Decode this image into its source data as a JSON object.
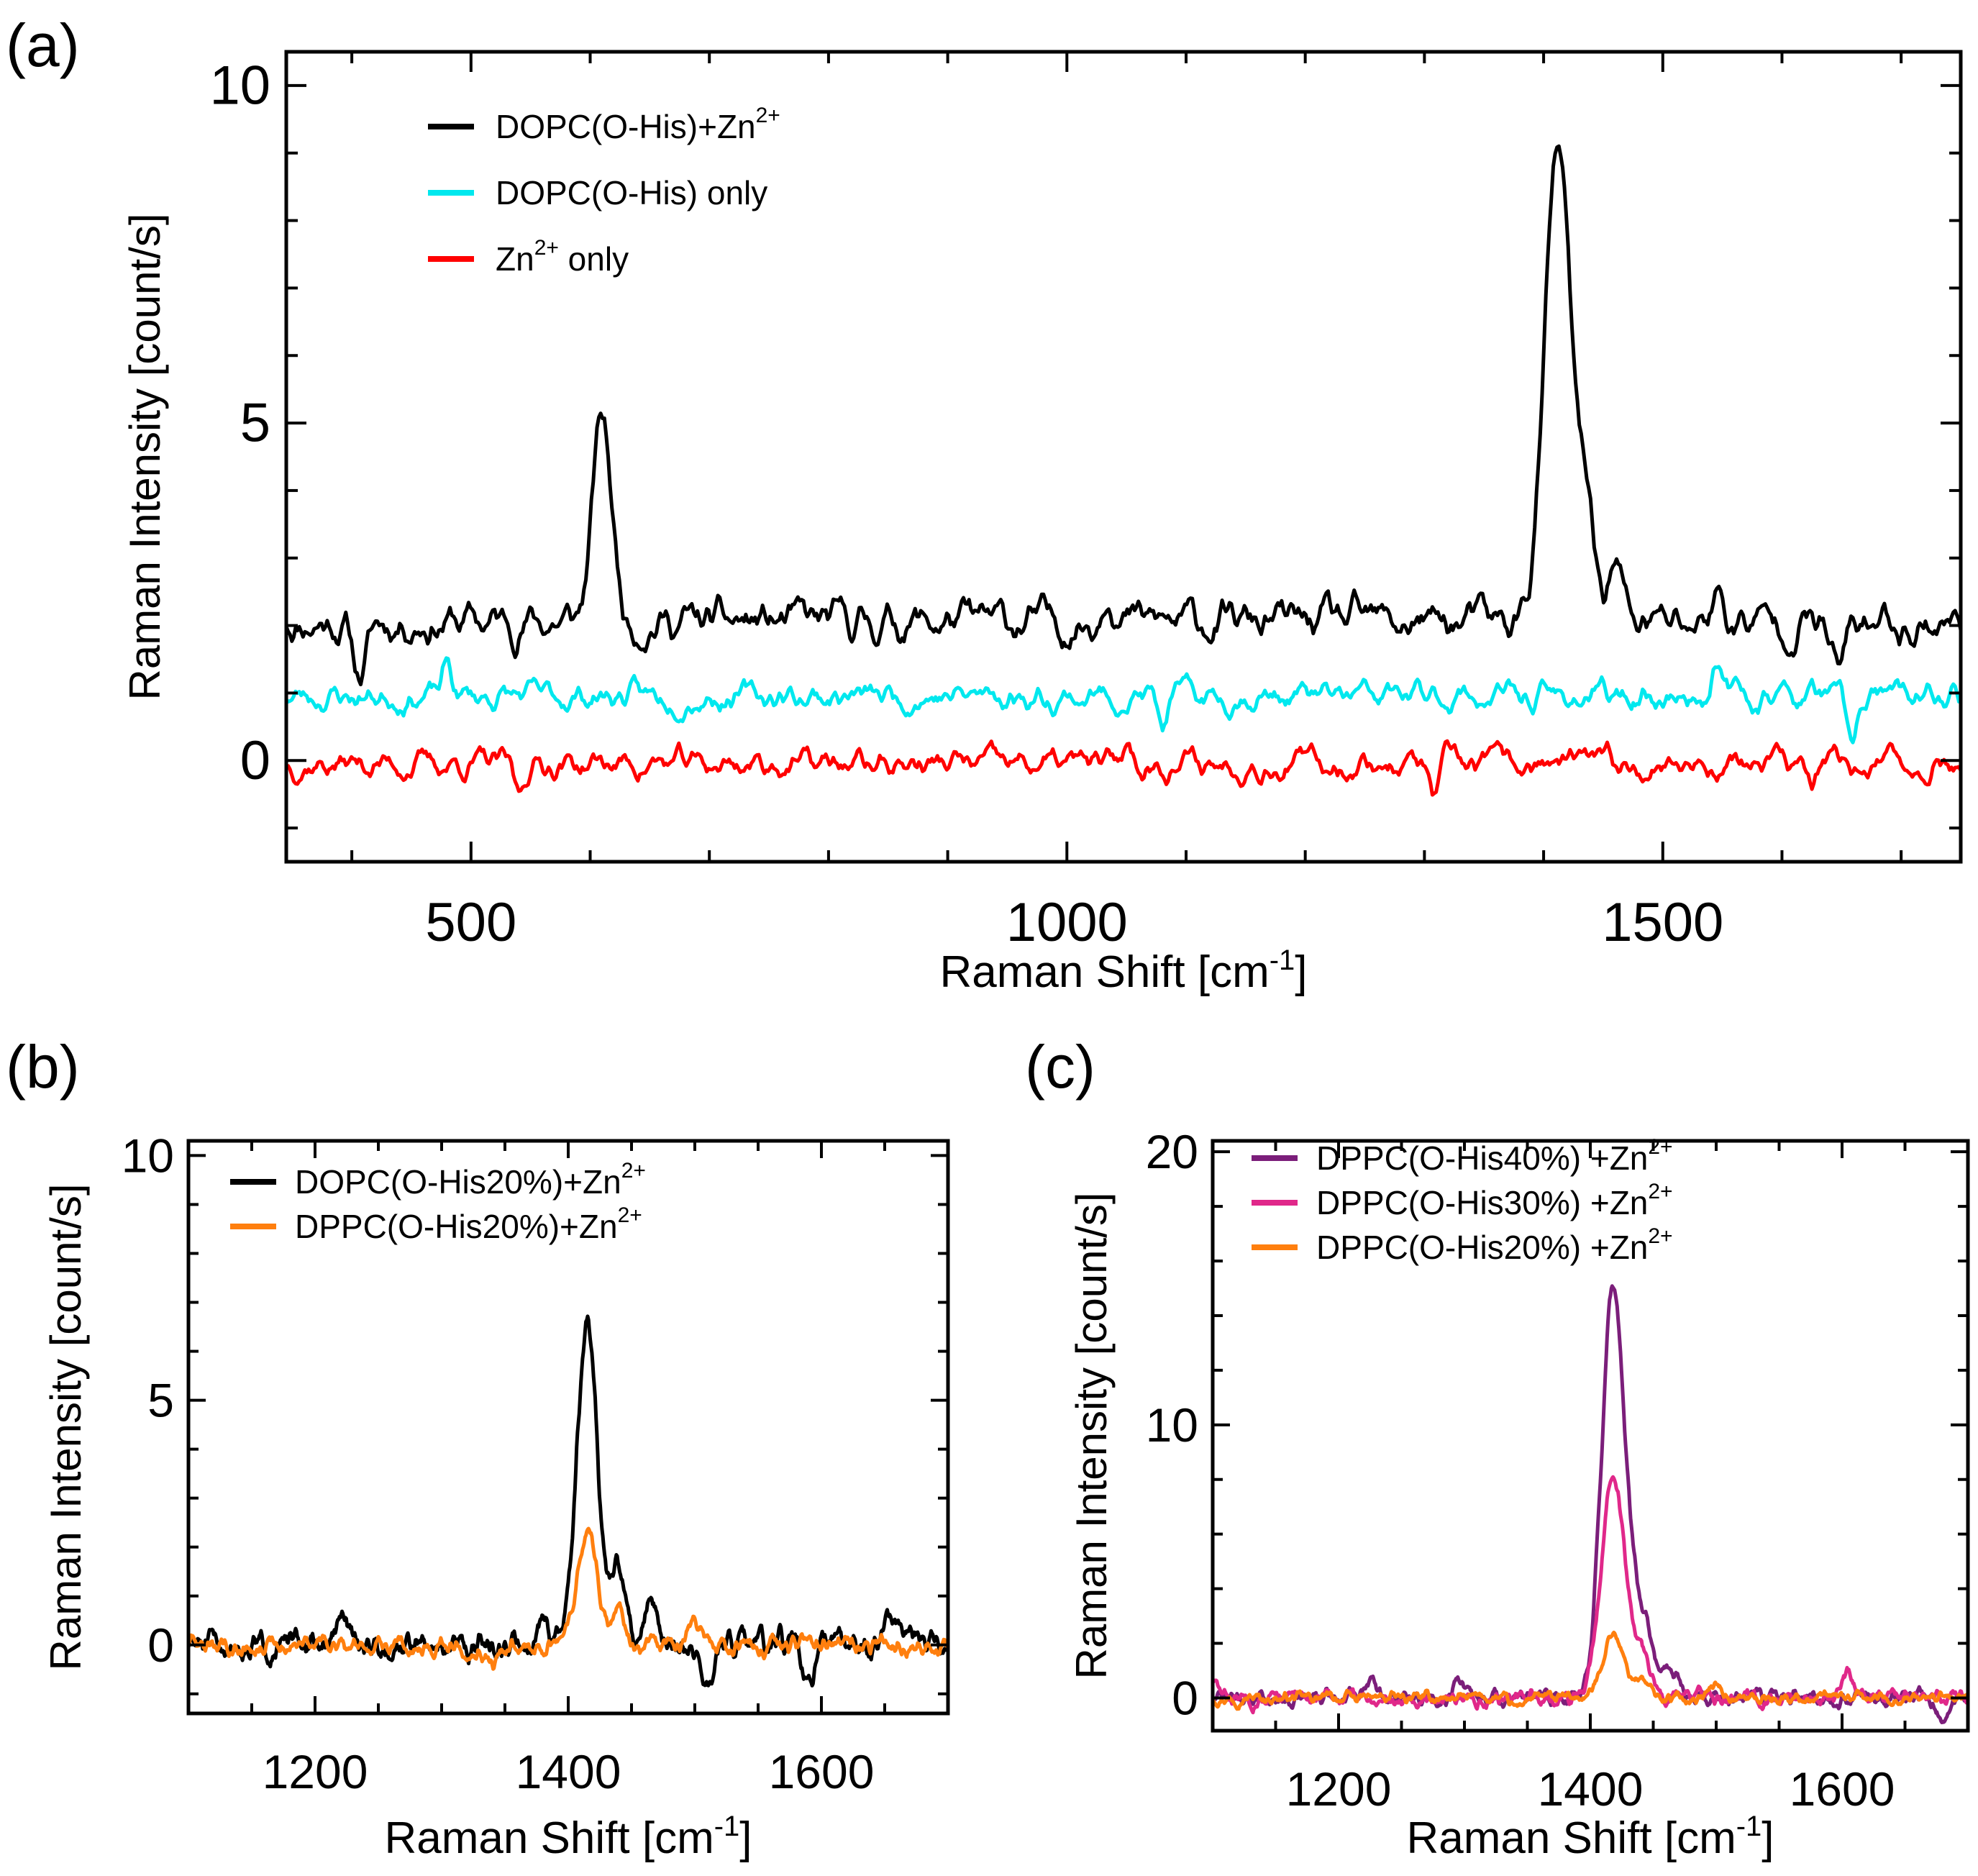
{
  "figure": {
    "panel_labels": [
      "(a)",
      "(b)",
      "(c)"
    ]
  },
  "chart_data": [
    {
      "panel": "(a)",
      "type": "line",
      "title": "",
      "xlabel": "Raman Shift [cm",
      "xlabel_sup": "-1",
      "xlabel_tail": "]",
      "ylabel": "Raman Intensity [count/s]",
      "xlim": [
        345,
        1750
      ],
      "ylim": [
        -1.5,
        10.5
      ],
      "xticks": [
        500,
        1000,
        1500
      ],
      "yticks": [
        0,
        5,
        10
      ],
      "xtick_labels": [
        "500",
        "1000",
        "1500"
      ],
      "ytick_labels": [
        "0",
        "5",
        "10"
      ],
      "x_minor_step": 100,
      "y_minor_step": 1,
      "legend_position": "top-left",
      "series": [
        {
          "name": "DOPC(O-His)+Zn",
          "name_sup": "2+",
          "name_tail": "",
          "color": "#000000",
          "baseline": 2.05,
          "noise": 0.32,
          "seed": 11,
          "peaks": [
            [
              407,
              -0.75,
              6
            ],
            [
              610,
              3.0,
              8
            ],
            [
              1035,
              0.6,
              5
            ],
            [
              1412,
              7.0,
              11
            ],
            [
              1437,
              1.5,
              7
            ],
            [
              1460,
              0.9,
              6
            ],
            [
              1647,
              -0.7,
              6
            ],
            [
              1545,
              0.4,
              5
            ]
          ],
          "points": [
            [
              345,
              2.3
            ],
            [
              407,
              1.3
            ],
            [
              500,
              1.9
            ],
            [
              610,
              5.05
            ],
            [
              700,
              2.0
            ],
            [
              800,
              1.9
            ],
            [
              900,
              2.0
            ],
            [
              1000,
              2.0
            ],
            [
              1035,
              2.7
            ],
            [
              1100,
              1.9
            ],
            [
              1200,
              2.0
            ],
            [
              1300,
              2.0
            ],
            [
              1390,
              2.5
            ],
            [
              1412,
              9.05
            ],
            [
              1437,
              4.3
            ],
            [
              1460,
              3.2
            ],
            [
              1500,
              2.0
            ],
            [
              1600,
              1.9
            ],
            [
              1750,
              1.9
            ]
          ]
        },
        {
          "name": "DOPC(O-His) only",
          "name_sup": "",
          "name_tail": "",
          "color": "#00e8ee",
          "baseline": 0.95,
          "noise": 0.22,
          "seed": 23,
          "peaks": [
            [
              1658,
              -0.75,
              4
            ],
            [
              1545,
              0.6,
              4
            ],
            [
              1080,
              -0.45,
              4
            ],
            [
              480,
              0.45,
              4
            ]
          ],
          "points": [
            [
              345,
              1.1
            ],
            [
              480,
              1.45
            ],
            [
              700,
              1.0
            ],
            [
              1000,
              1.0
            ],
            [
              1080,
              0.5
            ],
            [
              1300,
              1.0
            ],
            [
              1545,
              1.6
            ],
            [
              1658,
              0.0
            ],
            [
              1750,
              0.8
            ]
          ]
        },
        {
          "name": "Zn",
          "name_sup": "2+",
          "name_tail": " only",
          "color": "#ff0000",
          "baseline": -0.05,
          "noise": 0.22,
          "seed": 37,
          "peaks": [
            [
              1308,
              -0.55,
              4
            ],
            [
              540,
              -0.45,
              4
            ],
            [
              1625,
              -0.35,
              4
            ],
            [
              1050,
              0.3,
              4
            ]
          ],
          "points": [
            [
              345,
              -0.2
            ],
            [
              540,
              -0.5
            ],
            [
              800,
              0.1
            ],
            [
              1050,
              0.3
            ],
            [
              1308,
              -0.7
            ],
            [
              1500,
              0.0
            ],
            [
              1625,
              -0.4
            ],
            [
              1750,
              0.1
            ]
          ]
        }
      ]
    },
    {
      "panel": "(b)",
      "type": "line",
      "title": "",
      "xlabel": "Raman Shift [cm",
      "xlabel_sup": "-1",
      "xlabel_tail": "]",
      "ylabel": "Raman Intensity [count/s]",
      "xlim": [
        1100,
        1700
      ],
      "ylim": [
        -1.4,
        10.3
      ],
      "xticks": [
        1200,
        1400,
        1600
      ],
      "yticks": [
        0,
        5,
        10
      ],
      "xtick_labels": [
        "1200",
        "1400",
        "1600"
      ],
      "ytick_labels": [
        "0",
        "5",
        "10"
      ],
      "x_minor_step": 50,
      "y_minor_step": 1,
      "legend_position": "top-left",
      "series": [
        {
          "name": "DOPC(O-His20%)+Zn",
          "name_sup": "2+",
          "name_tail": "",
          "color": "#000000",
          "baseline": 0.0,
          "noise": 0.26,
          "seed": 51,
          "peaks": [
            [
              1415,
              6.6,
              8
            ],
            [
              1440,
              1.5,
              6
            ],
            [
              1465,
              1.0,
              5
            ],
            [
              1380,
              0.5,
              5
            ],
            [
              1510,
              -0.9,
              5
            ],
            [
              1590,
              -0.8,
              5
            ],
            [
              1655,
              0.6,
              5
            ],
            [
              1222,
              0.5,
              5
            ]
          ],
          "points": [
            [
              1100,
              0.0
            ],
            [
              1222,
              0.6
            ],
            [
              1380,
              0.7
            ],
            [
              1415,
              7.1
            ],
            [
              1440,
              2.3
            ],
            [
              1465,
              1.3
            ],
            [
              1510,
              -0.9
            ],
            [
              1590,
              -0.8
            ],
            [
              1655,
              0.6
            ],
            [
              1700,
              0.0
            ]
          ]
        },
        {
          "name": "DPPC(O-His20%)+Zn",
          "name_sup": "2+",
          "name_tail": "",
          "color": "#ff7f0e",
          "baseline": 0.0,
          "noise": 0.18,
          "seed": 63,
          "peaks": [
            [
              1415,
              2.4,
              8
            ],
            [
              1440,
              0.7,
              6
            ],
            [
              1500,
              0.5,
              5
            ],
            [
              1340,
              -0.4,
              5
            ]
          ],
          "points": [
            [
              1100,
              0.0
            ],
            [
              1340,
              -0.4
            ],
            [
              1415,
              2.5
            ],
            [
              1440,
              0.8
            ],
            [
              1500,
              0.5
            ],
            [
              1700,
              0.0
            ]
          ]
        }
      ]
    },
    {
      "panel": "(c)",
      "type": "line",
      "title": "",
      "xlabel": "Raman Shift [cm",
      "xlabel_sup": "-1",
      "xlabel_tail": "]",
      "ylabel": "Raman Intensity [count/s]",
      "xlim": [
        1100,
        1700
      ],
      "ylim": [
        -1.2,
        20.4
      ],
      "xticks": [
        1200,
        1400,
        1600
      ],
      "yticks": [
        0,
        10,
        20
      ],
      "xtick_labels": [
        "1200",
        "1400",
        "1600"
      ],
      "ytick_labels": [
        "0",
        "10",
        "20"
      ],
      "x_minor_step": 50,
      "y_minor_step": 2,
      "legend_position": "top-left",
      "series": [
        {
          "name": "DPPC(O-His40%) +Zn",
          "name_sup": "2+",
          "name_tail": "",
          "color": "#7b1e7a",
          "baseline": 0.0,
          "noise": 0.28,
          "seed": 71,
          "peaks": [
            [
              1418,
              14.8,
              9
            ],
            [
              1440,
              3.0,
              9
            ],
            [
              1465,
              1.0,
              6
            ],
            [
              1295,
              0.8,
              4
            ],
            [
              1225,
              0.7,
              4
            ],
            [
              1680,
              -0.8,
              5
            ]
          ],
          "points": [
            [
              1100,
              0.0
            ],
            [
              1225,
              0.8
            ],
            [
              1295,
              0.9
            ],
            [
              1418,
              15.5
            ],
            [
              1440,
              3.5
            ],
            [
              1465,
              1.1
            ],
            [
              1680,
              -0.9
            ],
            [
              1700,
              0.0
            ]
          ]
        },
        {
          "name": "DPPC(O-His30%) +Zn",
          "name_sup": "2+",
          "name_tail": "",
          "color": "#e0288a",
          "baseline": 0.0,
          "noise": 0.26,
          "seed": 83,
          "peaks": [
            [
              1418,
              8.2,
              9
            ],
            [
              1440,
              1.6,
              8
            ],
            [
              1605,
              0.8,
              4
            ],
            [
              1100,
              0.6,
              4
            ]
          ],
          "points": [
            [
              1100,
              0.5
            ],
            [
              1418,
              8.5
            ],
            [
              1440,
              2.0
            ],
            [
              1605,
              0.8
            ],
            [
              1700,
              0.0
            ]
          ]
        },
        {
          "name": "DPPC(O-His20%) +Zn",
          "name_sup": "2+",
          "name_tail": "",
          "color": "#ff7f0e",
          "baseline": 0.0,
          "noise": 0.2,
          "seed": 97,
          "peaks": [
            [
              1418,
              2.4,
              8
            ],
            [
              1440,
              0.7,
              6
            ],
            [
              1500,
              0.5,
              5
            ],
            [
              1340,
              -0.35,
              5
            ]
          ],
          "points": [
            [
              1100,
              0.0
            ],
            [
              1418,
              2.6
            ],
            [
              1440,
              0.8
            ],
            [
              1500,
              0.5
            ],
            [
              1700,
              0.0
            ]
          ]
        }
      ]
    }
  ]
}
